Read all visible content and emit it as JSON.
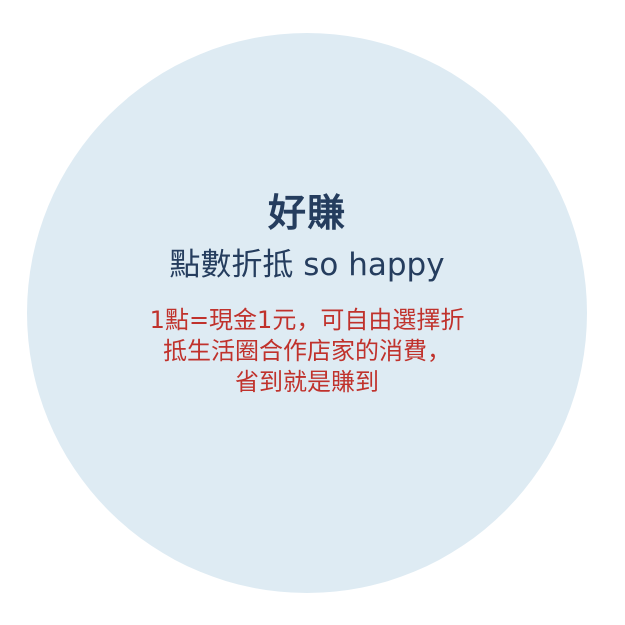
{
  "heading": {
    "title": "好賺",
    "subtitle": "點數折抵 so happy"
  },
  "description": {
    "lines": [
      "1點=現金1元，可自由選擇折",
      "抵生活圈合作店家的消費，",
      "省到就是賺到"
    ]
  },
  "colors": {
    "circle": "#deebf3",
    "heading": "#253d5e",
    "description": "#c0322c"
  }
}
